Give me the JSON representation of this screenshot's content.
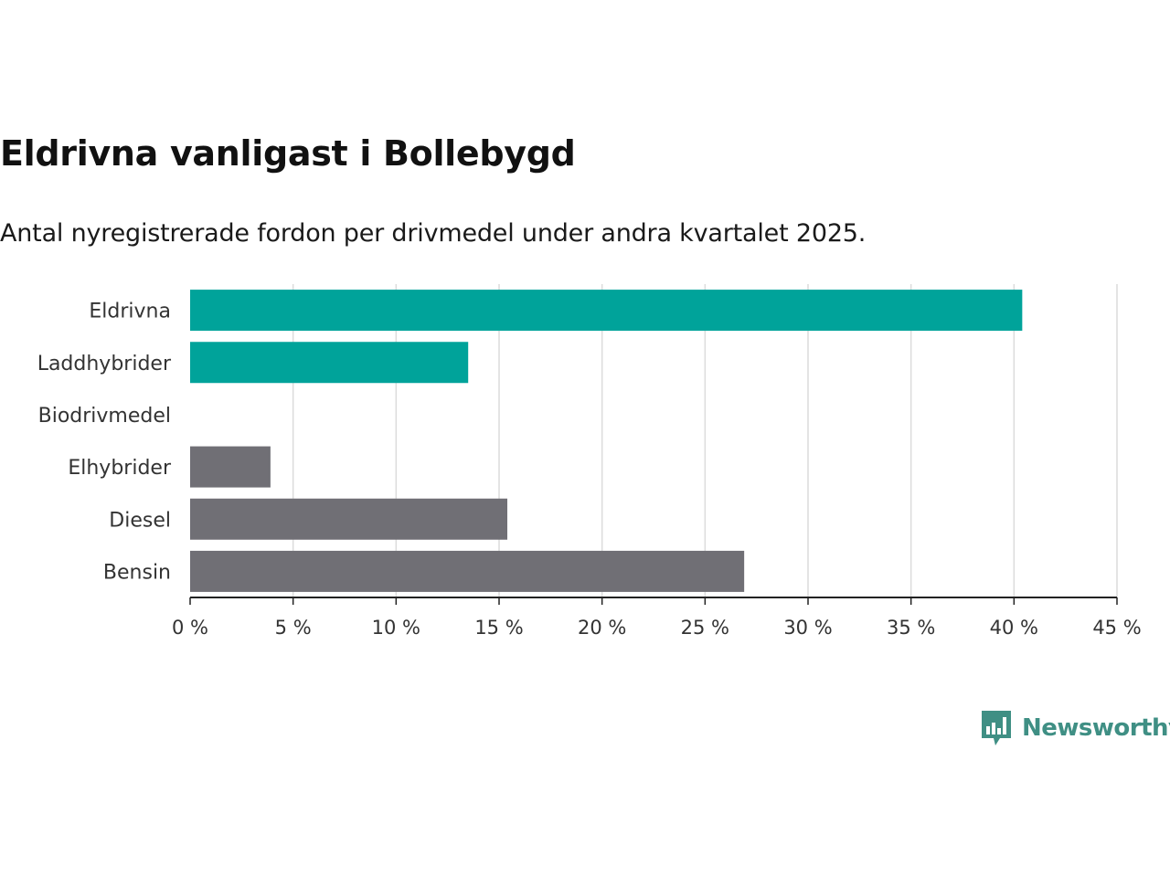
{
  "chart_data": {
    "type": "bar",
    "orientation": "horizontal",
    "title": "Eldrivna vanligast i Bollebygd",
    "subtitle": "Antal nyregistrerade fordon per drivmedel under andra kvartalet 2025.",
    "categories": [
      "Eldrivna",
      "Laddhybrider",
      "Biodrivmedel",
      "Elhybrider",
      "Diesel",
      "Bensin"
    ],
    "values": [
      40.4,
      13.5,
      0,
      3.9,
      15.4,
      26.9
    ],
    "bar_colors": [
      "#00a39a",
      "#00a39a",
      "#00a39a",
      "#706f75",
      "#706f75",
      "#706f75"
    ],
    "xlim": [
      0,
      45
    ],
    "x_ticks": [
      0,
      5,
      10,
      15,
      20,
      25,
      30,
      35,
      40,
      45
    ],
    "x_tick_labels": [
      "0 %",
      "5 %",
      "10 %",
      "15 %",
      "20 %",
      "25 %",
      "30 %",
      "35 %",
      "40 %",
      "45 %"
    ],
    "xlabel": "",
    "ylabel": "",
    "grid": true,
    "legend": false
  },
  "brand": {
    "name": "Newsworthy",
    "color": "#3f8f84",
    "icon": "bar-chart-speech-bubble-icon"
  }
}
